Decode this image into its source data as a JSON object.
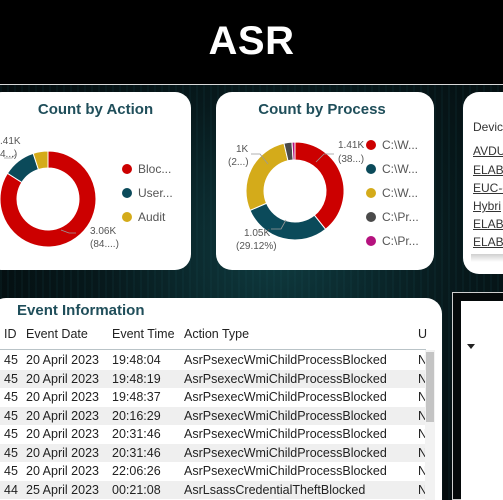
{
  "header": {
    "title": "ASR"
  },
  "count_by_action": {
    "title": "Count by Action",
    "legend": [
      {
        "label": "Bloc...",
        "color": "#cc0000"
      },
      {
        "label": "User...",
        "color": "#0b4a5a"
      },
      {
        "label": "Audit",
        "color": "#d4ab1a"
      }
    ],
    "labels": {
      "top_left_value": ".41K",
      "top_left_pct": "4...)",
      "bottom_value": "3.06K",
      "bottom_pct": "(84....)"
    },
    "chart_data": {
      "type": "pie",
      "categories": [
        "Bloc...",
        "User...",
        "Audit"
      ],
      "values": [
        84,
        11,
        5
      ],
      "colors": [
        "#cc0000",
        "#0b4a5a",
        "#d4ab1a"
      ]
    }
  },
  "count_by_process": {
    "title": "Count by Process",
    "legend": [
      {
        "label": "C:\\W...",
        "color": "#cc0000"
      },
      {
        "label": "C:\\W...",
        "color": "#0b4a5a"
      },
      {
        "label": "C:\\W...",
        "color": "#d4ab1a"
      },
      {
        "label": "C:\\Pr...",
        "color": "#4a4a4a"
      },
      {
        "label": "C:\\Pr...",
        "color": "#b5127e"
      }
    ],
    "labels": {
      "left_value": "1K",
      "left_pct": "(2...)",
      "right_value": "1.41K",
      "right_pct": "(38...)",
      "bottom_value": "1.05K",
      "bottom_pct": "(29.12%)"
    },
    "chart_data": {
      "type": "pie",
      "categories": [
        "C:\\W... (1)",
        "C:\\W... (2)",
        "C:\\W... (3)",
        "C:\\Pr... (1)",
        "C:\\Pr... (2)"
      ],
      "values": [
        1410,
        1050,
        1000,
        95,
        35
      ],
      "colors": [
        "#cc0000",
        "#0b4a5a",
        "#d4ab1a",
        "#4a4a4a",
        "#b5127e"
      ]
    }
  },
  "device_slicer": {
    "header": "Devic",
    "items": [
      "AVDU",
      "ELAB-",
      "EUC-c",
      "Hybri",
      "ELAB-",
      "ELAB-"
    ]
  },
  "event_table": {
    "title": "Event Information",
    "columns": [
      "ID",
      "Event Date",
      "Event Time",
      "Action Type",
      "U"
    ],
    "rows": [
      [
        "45",
        "20 April 2023",
        "19:48:04",
        "AsrPsexecWmiChildProcessBlocked",
        "N"
      ],
      [
        "45",
        "20 April 2023",
        "19:48:19",
        "AsrPsexecWmiChildProcessBlocked",
        "N"
      ],
      [
        "45",
        "20 April 2023",
        "19:48:37",
        "AsrPsexecWmiChildProcessBlocked",
        "N"
      ],
      [
        "45",
        "20 April 2023",
        "20:16:29",
        "AsrPsexecWmiChildProcessBlocked",
        "N"
      ],
      [
        "45",
        "20 April 2023",
        "20:31:46",
        "AsrPsexecWmiChildProcessBlocked",
        "N"
      ],
      [
        "45",
        "20 April 2023",
        "20:31:46",
        "AsrPsexecWmiChildProcessBlocked",
        "N"
      ],
      [
        "45",
        "20 April 2023",
        "22:06:26",
        "AsrPsexecWmiChildProcessBlocked",
        "N"
      ],
      [
        "44",
        "25 April 2023",
        "00:21:08",
        "AsrLsassCredentialTheftBlocked",
        "N"
      ]
    ]
  },
  "dropdown": {
    "icon": "chevron-down-icon"
  }
}
